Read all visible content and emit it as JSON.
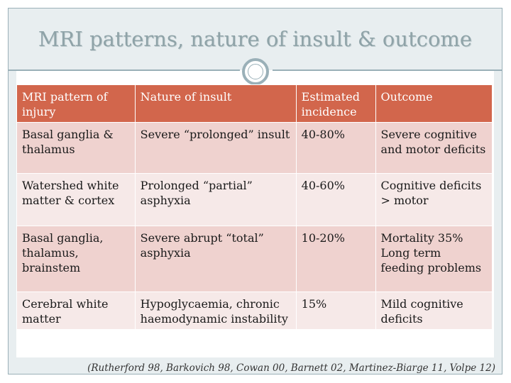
{
  "title": "MRI patterns, nature of insult & outcome",
  "table": {
    "headers": [
      "MRI pattern of injury",
      "Nature of insult",
      "Estimated incidence",
      "Outcome"
    ],
    "rows": [
      [
        "Basal ganglia & thalamus",
        "Severe “prolonged” insult",
        "40-80%",
        "Severe cognitive and motor deficits"
      ],
      [
        "Watershed white matter & cortex",
        "Prolonged “partial” asphyxia",
        "40-60%",
        "Cognitive deficits > motor"
      ],
      [
        "Basal ganglia, thalamus, brainstem",
        "Severe abrupt “total” asphyxia",
        "10-20%",
        "Mortality 35%\nLong term feeding problems"
      ],
      [
        "Cerebral white matter",
        "Hypoglycaemia, chronic haemodynamic instability",
        "15%",
        "Mild cognitive deficits"
      ]
    ]
  },
  "citation": "(Rutherford 98, Barkovich 98, Cowan 00, Barnett 02, Martinez-Biarge 11, Volpe 12)",
  "colors": {
    "header_bg": "#d2664c",
    "row_odd_bg": "#efd2cf",
    "row_even_bg": "#f6e9e8",
    "title_color": "#8fa3a8",
    "accent": "#9ab0b8"
  }
}
